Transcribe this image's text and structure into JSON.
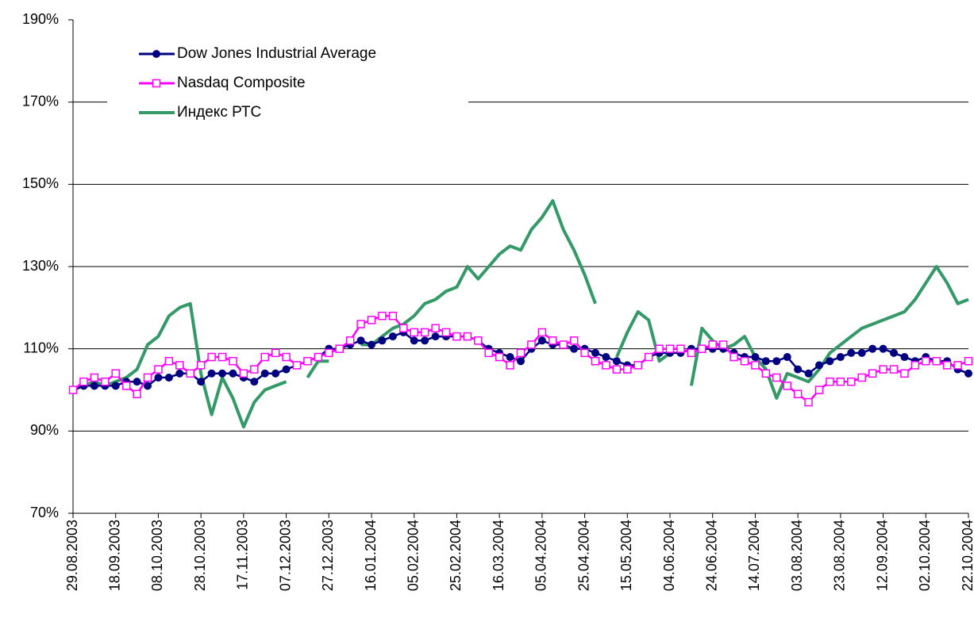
{
  "chart_data": {
    "type": "line",
    "categories": [
      "29.08.2003",
      null,
      null,
      null,
      "18.09.2003",
      null,
      null,
      null,
      "08.10.2003",
      null,
      null,
      null,
      "28.10.2003",
      null,
      null,
      null,
      "17.11.2003",
      null,
      null,
      null,
      "07.12.2003",
      null,
      null,
      null,
      "27.12.2003",
      null,
      null,
      null,
      "16.01.2004",
      null,
      null,
      null,
      "05.02.2004",
      null,
      null,
      null,
      "25.02.2004",
      null,
      null,
      null,
      "16.03.2004",
      null,
      null,
      null,
      "05.04.2004",
      null,
      null,
      null,
      "25.04.2004",
      null,
      null,
      null,
      "15.05.2004",
      null,
      null,
      null,
      "04.06.2004",
      null,
      null,
      null,
      "24.06.2004",
      null,
      null,
      null,
      "14.07.2004",
      null,
      null,
      null,
      "03.08.2004",
      null,
      null,
      null,
      "23.08.2004",
      null,
      null,
      null,
      "12.09.2004",
      null,
      null,
      null,
      "02.10.2004",
      null,
      null,
      null,
      "22.10.2004"
    ],
    "series": [
      {
        "name": "Dow Jones Industrial Average",
        "color": "#000080",
        "marker": "circle",
        "values": [
          100,
          101,
          101,
          101,
          101,
          102,
          102,
          101,
          103,
          103,
          104,
          104,
          102,
          104,
          104,
          104,
          103,
          102,
          104,
          104,
          105,
          106,
          107,
          108,
          110,
          110,
          111,
          112,
          111,
          112,
          113,
          114,
          112,
          112,
          113,
          113,
          113,
          113,
          112,
          110,
          109,
          108,
          107,
          110,
          112,
          111,
          111,
          110,
          110,
          109,
          108,
          107,
          106,
          106,
          108,
          109,
          109,
          109,
          110,
          110,
          110,
          110,
          109,
          108,
          108,
          107,
          107,
          108,
          105,
          104,
          106,
          107,
          108,
          109,
          109,
          110,
          110,
          109,
          108,
          107,
          108,
          107,
          107,
          105,
          104
        ]
      },
      {
        "name": "Nasdaq Composite",
        "color": "#ff00ff",
        "marker": "square",
        "values": [
          100,
          102,
          103,
          102,
          104,
          101,
          99,
          103,
          105,
          107,
          106,
          104,
          106,
          108,
          108,
          107,
          104,
          105,
          108,
          109,
          108,
          106,
          107,
          108,
          109,
          110,
          112,
          116,
          117,
          118,
          118,
          115,
          114,
          114,
          115,
          114,
          113,
          113,
          112,
          109,
          108,
          106,
          109,
          111,
          114,
          112,
          111,
          112,
          109,
          107,
          106,
          105,
          105,
          106,
          108,
          110,
          110,
          110,
          109,
          110,
          111,
          111,
          108,
          107,
          106,
          104,
          103,
          101,
          99,
          97,
          100,
          102,
          102,
          102,
          103,
          104,
          105,
          105,
          104,
          106,
          107,
          107,
          106,
          106,
          107
        ]
      },
      {
        "name": "Индекс РТС",
        "color": "#339966",
        "marker": "none",
        "values": [
          100,
          101,
          102,
          101,
          102,
          103,
          105,
          111,
          113,
          118,
          120,
          121,
          104,
          94,
          103,
          98,
          91,
          97,
          100,
          101,
          102,
          null,
          103,
          107,
          107,
          null,
          null,
          111,
          111,
          113,
          115,
          116,
          118,
          121,
          122,
          124,
          125,
          130,
          127,
          130,
          133,
          135,
          134,
          139,
          142,
          146,
          139,
          134,
          128,
          121,
          null,
          108,
          114,
          119,
          117,
          107,
          109,
          null,
          101,
          115,
          112,
          110,
          111,
          113,
          108,
          105,
          98,
          104,
          103,
          102,
          105,
          109,
          111,
          113,
          115,
          116,
          117,
          118,
          119,
          122,
          126,
          130,
          126,
          121,
          122
        ]
      }
    ],
    "ylim": [
      70,
      190
    ],
    "yticks": [
      {
        "value": 70,
        "label": "70%"
      },
      {
        "value": 90,
        "label": "90%"
      },
      {
        "value": 110,
        "label": "110%"
      },
      {
        "value": 130,
        "label": "130%"
      },
      {
        "value": 150,
        "label": "150%"
      },
      {
        "value": 170,
        "label": "170%"
      },
      {
        "value": 190,
        "label": "190%"
      }
    ],
    "grid": true,
    "legend": "upper left"
  }
}
